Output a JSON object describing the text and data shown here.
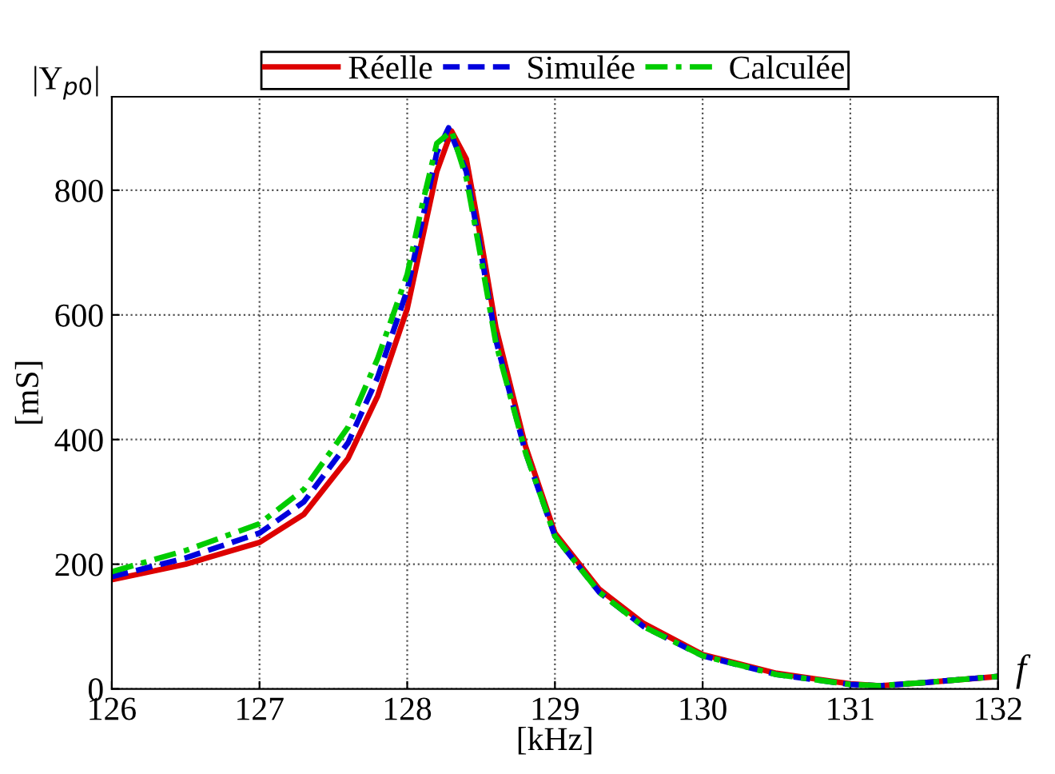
{
  "chart_data": {
    "type": "line",
    "title": "|Y$_{p0}$|",
    "xlabel": "[kHz]",
    "ylabel": "[mS]",
    "annotations": [
      "f"
    ],
    "xlim": [
      126,
      132
    ],
    "xticks": [
      126,
      127,
      128,
      129,
      130,
      131,
      132
    ],
    "ylim": [
      0,
      950
    ],
    "yticks": [
      0,
      200,
      400,
      600,
      800
    ],
    "grid": true,
    "legend": "top",
    "series": [
      {
        "name": "Réelle",
        "color": "#dd0000",
        "line_style": "solid",
        "x": [
          126,
          126.5,
          127,
          127.3,
          127.6,
          127.8,
          128,
          128.1,
          128.2,
          128.3,
          128.4,
          128.5,
          128.6,
          128.8,
          129,
          129.3,
          129.6,
          130,
          130.5,
          131,
          131.2,
          131.5,
          132
        ],
        "values": [
          175,
          200,
          235,
          280,
          370,
          470,
          610,
          720,
          830,
          895,
          850,
          720,
          580,
          390,
          250,
          160,
          105,
          55,
          25,
          8,
          5,
          10,
          20
        ]
      },
      {
        "name": "Simulée",
        "color": "#0000dd",
        "line_style": "dashed",
        "x": [
          126,
          126.5,
          127,
          127.3,
          127.6,
          127.8,
          128,
          128.1,
          128.2,
          128.28,
          128.4,
          128.5,
          128.6,
          128.8,
          129,
          129.3,
          129.6,
          130,
          130.5,
          131,
          131.2,
          131.5,
          132
        ],
        "values": [
          180,
          210,
          250,
          300,
          395,
          500,
          640,
          750,
          860,
          900,
          830,
          700,
          560,
          380,
          245,
          155,
          100,
          53,
          23,
          7,
          5,
          10,
          20
        ]
      },
      {
        "name": "Calculée",
        "color": "#00cc00",
        "line_style": "dashdot",
        "x": [
          126,
          126.5,
          127,
          127.3,
          127.6,
          127.8,
          128,
          128.1,
          128.2,
          128.3,
          128.4,
          128.5,
          128.6,
          128.8,
          129,
          129.3,
          129.6,
          130,
          130.5,
          131,
          131.2,
          131.5,
          132
        ],
        "values": [
          188,
          222,
          265,
          320,
          420,
          530,
          665,
          775,
          875,
          895,
          820,
          690,
          555,
          380,
          245,
          155,
          100,
          53,
          23,
          7,
          5,
          10,
          20
        ]
      }
    ]
  }
}
